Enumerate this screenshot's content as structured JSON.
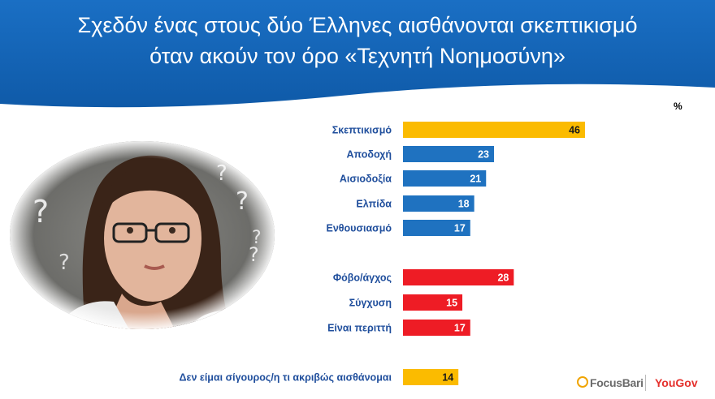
{
  "title_line1": "Σχεδόν ένας στους δύο Έλληνες αισθάνονται σκεπτικισμό",
  "title_line2": "όταν ακούν τον όρο «Τεχνητή Νοημοσύνη»",
  "unit": "%",
  "logos": {
    "left": "FocusBari",
    "right": "YouGov"
  },
  "colors": {
    "header": "#1565b8",
    "positive": "#1f72c0",
    "negative": "#ee1c25",
    "neutral": "#fbbb00",
    "label": "#1f4e9c"
  },
  "chart_data": {
    "type": "bar",
    "orientation": "horizontal",
    "unit": "%",
    "categories": [
      "Σκεπτικισμό",
      "Αποδοχή",
      "Αισιοδοξία",
      "Ελπίδα",
      "Ενθουσιασμό",
      "Φόβο/άγχος",
      "Σύγχυση",
      "Είναι περιττή",
      "Δεν είμαι σίγουρος/η τι ακριβώς αισθάνομαι"
    ],
    "values": [
      46,
      23,
      21,
      18,
      17,
      28,
      15,
      17,
      14
    ],
    "groups": [
      "neutral",
      "positive",
      "positive",
      "positive",
      "positive",
      "negative",
      "negative",
      "negative",
      "neutral"
    ],
    "xlim": [
      0,
      46
    ],
    "grid": false,
    "data_labels": true
  }
}
